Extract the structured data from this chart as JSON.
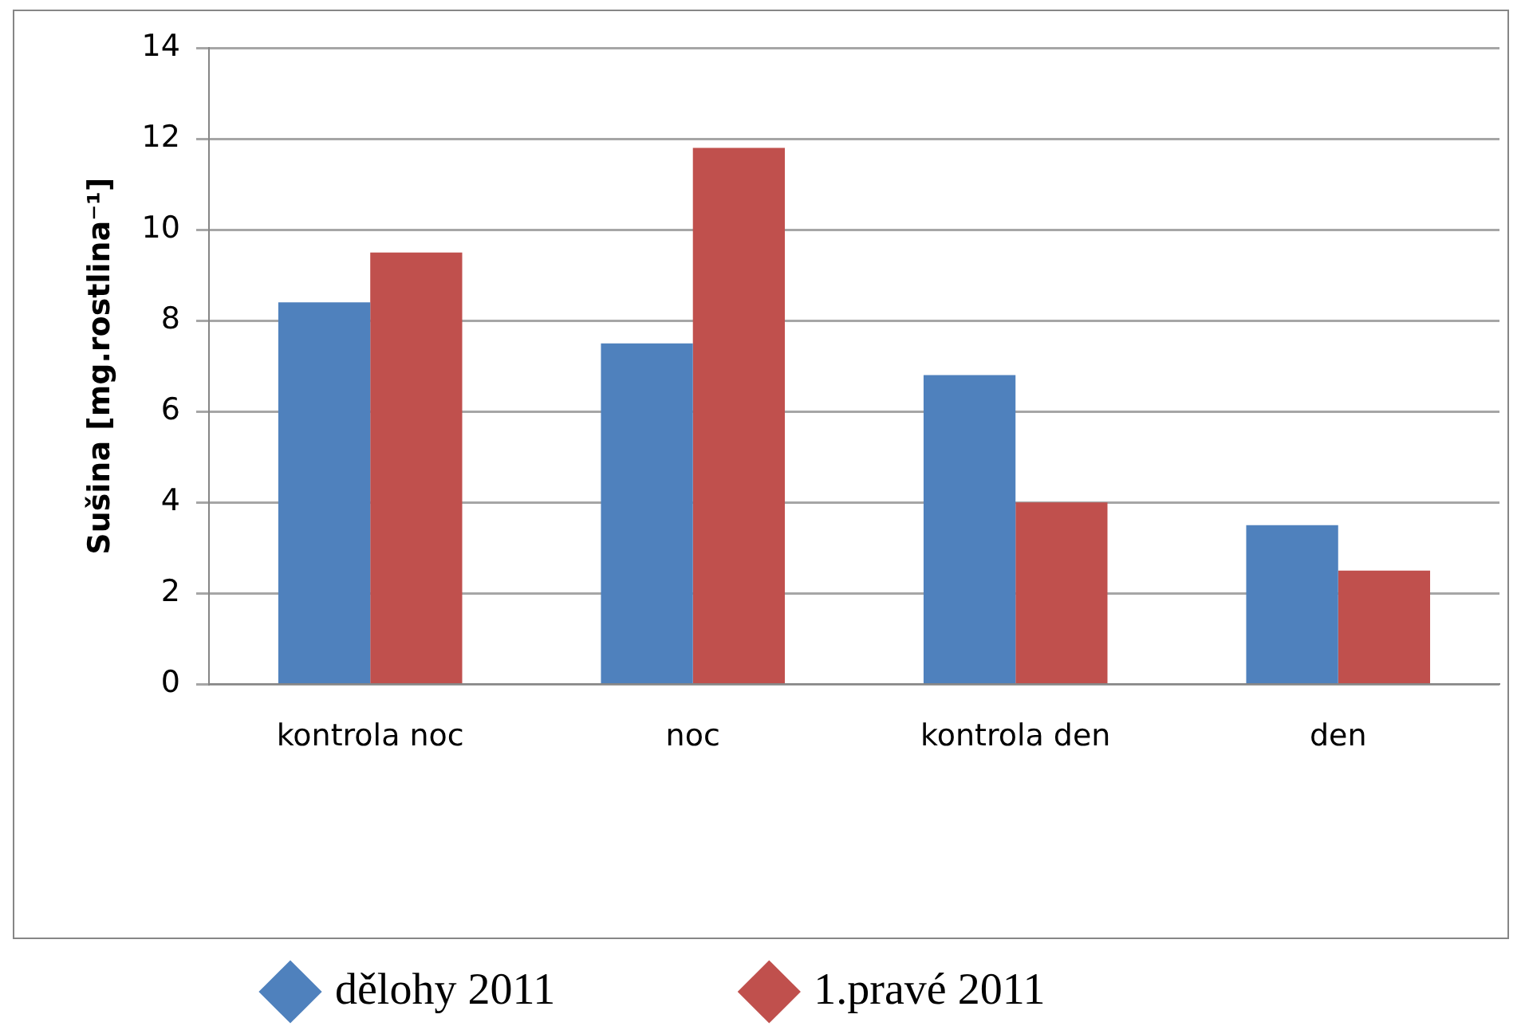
{
  "chart_data": {
    "type": "bar",
    "ylabel": "Sušina [mg.rostlina⁻¹]",
    "categories": [
      "kontrola noc",
      "noc",
      "kontrola den",
      "den"
    ],
    "series": [
      {
        "name": "dělohy 2011",
        "color": "#4f81bd",
        "values": [
          8.4,
          7.5,
          6.8,
          3.5
        ]
      },
      {
        "name": "1.pravé 2011",
        "color": "#c0504d",
        "values": [
          9.5,
          11.8,
          4.0,
          2.5
        ]
      }
    ],
    "ylim": [
      0,
      14
    ],
    "yticks": [
      0,
      2,
      4,
      6,
      8,
      10,
      12,
      14
    ],
    "grid": "y",
    "legend": "bottom"
  }
}
